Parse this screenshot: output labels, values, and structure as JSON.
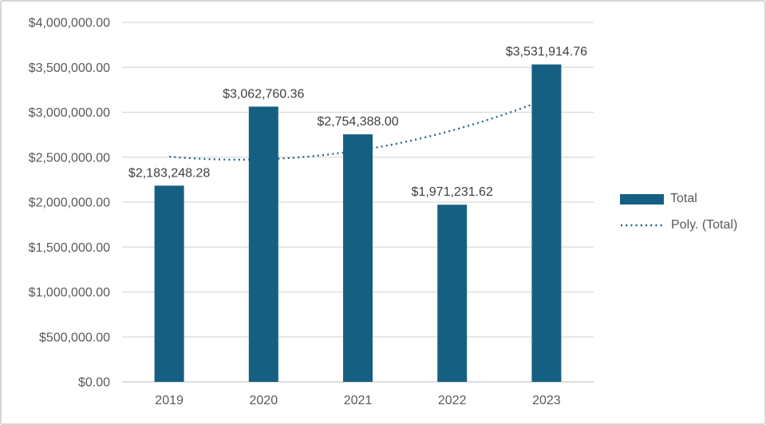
{
  "chart_data": {
    "type": "bar",
    "title": "",
    "categories": [
      "2019",
      "2020",
      "2021",
      "2022",
      "2023"
    ],
    "series": [
      {
        "name": "Total",
        "values": [
          2183248.28,
          3062760.36,
          2754388.0,
          1971231.62,
          3531914.76
        ]
      }
    ],
    "value_labels": [
      "$2,183,248.28",
      "$3,062,760.36",
      "$2,754,388.00",
      "$1,971,231.62",
      "$3,531,914.76"
    ],
    "trendline": {
      "name": "Poly. (Total)",
      "kind": "polynomial",
      "order": 2,
      "style": "dotted",
      "estimated_points": [
        2506342,
        2476731,
        2573915,
        2797892,
        3148663
      ]
    },
    "y_axis": {
      "min": 0,
      "max": 4000000,
      "step": 500000,
      "tick_labels": [
        "$0.00",
        "$500,000.00",
        "$1,000,000.00",
        "$1,500,000.00",
        "$2,000,000.00",
        "$2,500,000.00",
        "$3,000,000.00",
        "$3,500,000.00",
        "$4,000,000.00"
      ]
    },
    "x_axis": {
      "tick_labels": [
        "2019",
        "2020",
        "2021",
        "2022",
        "2023"
      ]
    },
    "legend": {
      "position": "right",
      "entries": [
        {
          "label": "Total",
          "marker": "bar-swatch"
        },
        {
          "label": "Poly. (Total)",
          "marker": "dotted-line"
        }
      ]
    },
    "grid": true,
    "colors": {
      "bar": "#156082",
      "trendline": "#156082",
      "gridline": "#D9D9D9",
      "zero_line": "#C6C6C6",
      "axis_text": "#595959",
      "data_label_text": "#404040",
      "chart_border": "#D6D6D6",
      "background": "#FFFFFF"
    }
  }
}
